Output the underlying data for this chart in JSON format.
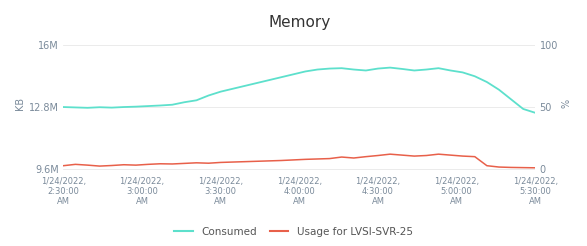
{
  "title": "Memory",
  "ylabel_left": "KB",
  "ylabel_right": "%",
  "x_labels": [
    "1/24/2022,\n2:30:00\nAM",
    "1/24/2022,\n3:00:00\nAM",
    "1/24/2022,\n3:30:00\nAM",
    "1/24/2022,\n4:00:00\nAM",
    "1/24/2022,\n4:30:00\nAM",
    "1/24/2022,\n5:00:00\nAM",
    "1/24/2022,\n5:30:00\nAM"
  ],
  "x_ticks_norm": [
    0.0,
    0.1667,
    0.3333,
    0.5,
    0.6667,
    0.8333,
    1.0
  ],
  "consumed_color": "#5de0cc",
  "usage_color": "#e8604a",
  "background_color": "#ffffff",
  "ylim_left": [
    9400000,
    16600000
  ],
  "yticks_left": [
    9600000,
    12800000,
    16000000
  ],
  "yticks_left_labels": [
    "9.6M",
    "12.8M",
    "16M"
  ],
  "yticks_right": [
    0,
    50,
    100
  ],
  "legend_consumed": "Consumed",
  "legend_usage": "Usage for LVSI-SVR-25",
  "consumed_data": [
    12800000,
    12780000,
    12760000,
    12790000,
    12770000,
    12800000,
    12820000,
    12850000,
    12880000,
    12920000,
    13050000,
    13150000,
    13400000,
    13600000,
    13750000,
    13900000,
    14050000,
    14200000,
    14350000,
    14500000,
    14650000,
    14750000,
    14800000,
    14820000,
    14750000,
    14700000,
    14800000,
    14850000,
    14780000,
    14700000,
    14750000,
    14820000,
    14700000,
    14600000,
    14400000,
    14100000,
    13700000,
    13200000,
    12700000,
    12500000
  ],
  "usage_data": [
    9750000,
    9820000,
    9780000,
    9730000,
    9760000,
    9800000,
    9780000,
    9820000,
    9850000,
    9840000,
    9870000,
    9900000,
    9880000,
    9920000,
    9940000,
    9960000,
    9980000,
    10000000,
    10020000,
    10050000,
    10080000,
    10100000,
    10120000,
    10200000,
    10150000,
    10220000,
    10280000,
    10350000,
    10300000,
    10250000,
    10280000,
    10350000,
    10300000,
    10250000,
    10220000,
    9750000,
    9680000,
    9660000,
    9650000,
    9640000
  ]
}
